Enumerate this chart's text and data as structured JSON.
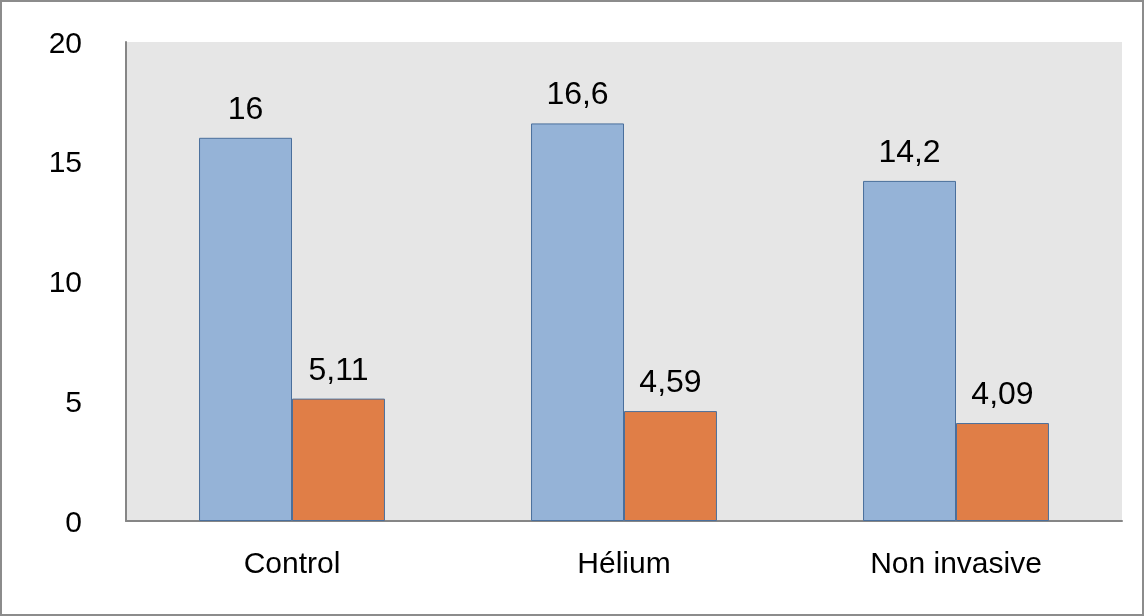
{
  "chart_data": {
    "type": "bar",
    "categories": [
      "Control",
      "Hélium",
      "Non invasive"
    ],
    "series": [
      {
        "color": "#95b3d7",
        "values": [
          16,
          16.6,
          14.2
        ],
        "value_labels": [
          "16",
          "16,6",
          "14,2"
        ]
      },
      {
        "color": "#e07e47",
        "values": [
          5.11,
          4.59,
          4.09
        ],
        "value_labels": [
          "5,11",
          "4,59",
          "4,09"
        ]
      }
    ],
    "ylim": [
      0,
      20
    ],
    "yticks": [
      0,
      5,
      10,
      15,
      20
    ],
    "grid": false
  }
}
